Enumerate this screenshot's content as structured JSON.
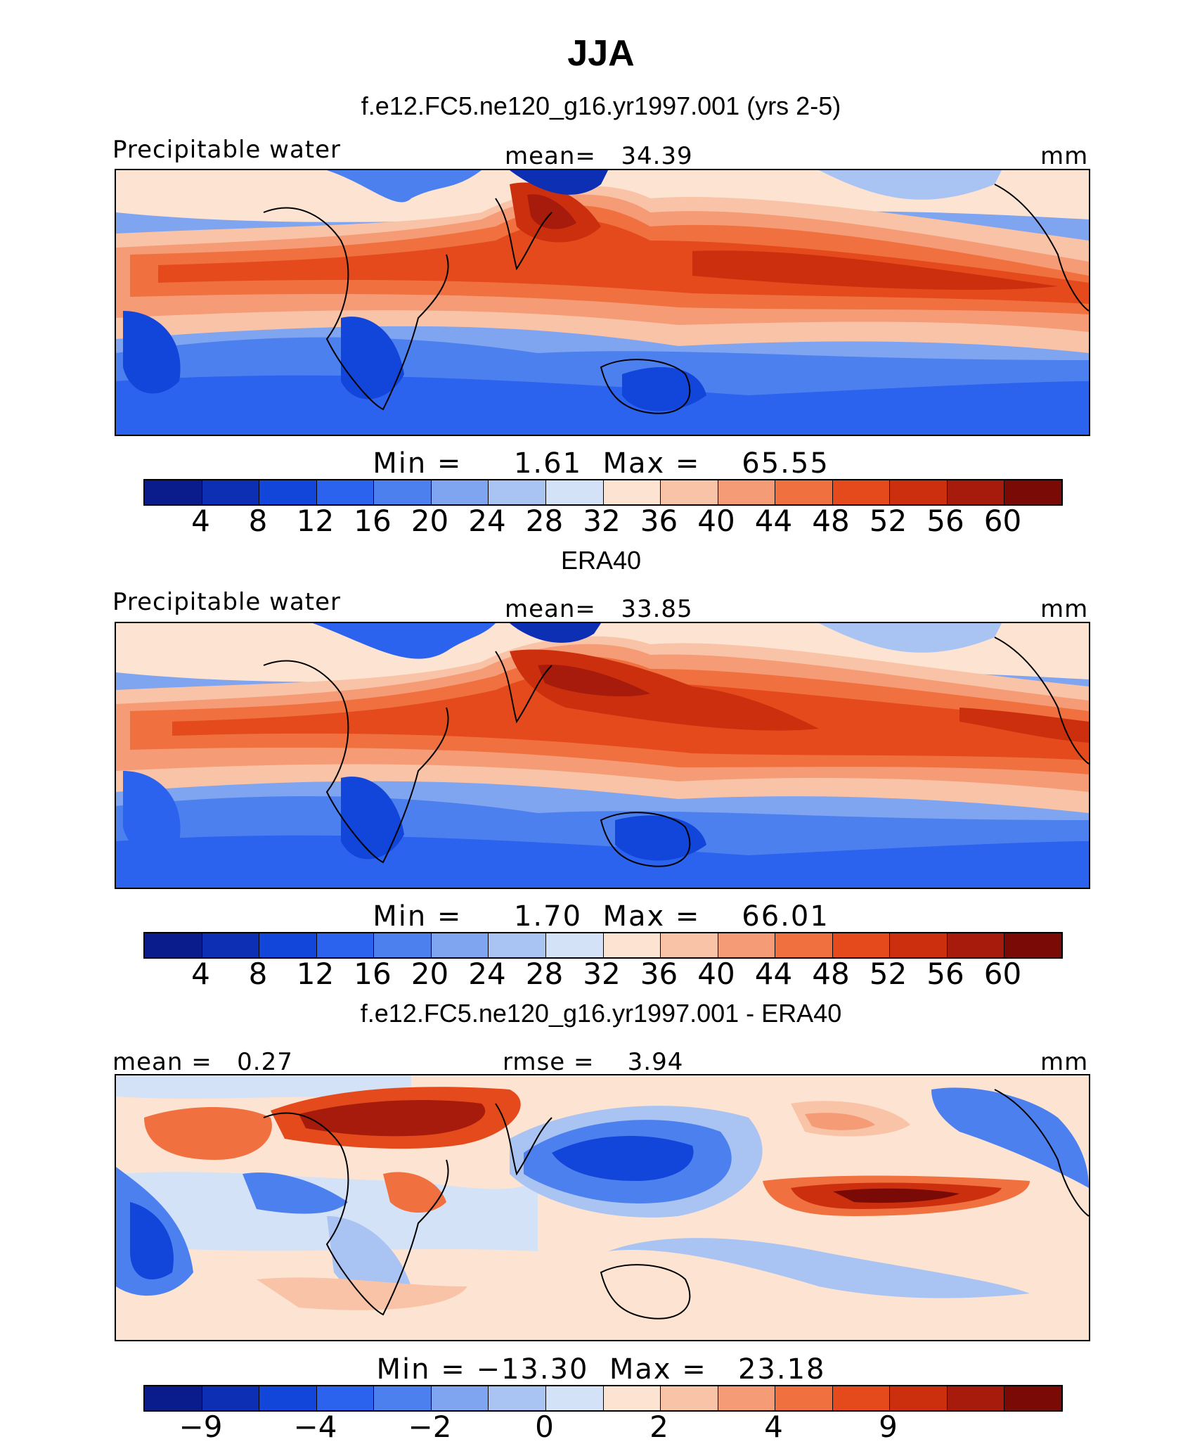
{
  "title": "JJA",
  "panels": [
    {
      "heading": "f.e12.FC5.ne120_g16.yr1997.001 (yrs 2-5)",
      "left_label": "Precipitable water",
      "center_label": "mean=   34.39",
      "right_label": "mm",
      "stats": "Min =     1.61  Max =    65.55",
      "colorbar": {
        "colors": [
          "#0a1c8c",
          "#0c2fb4",
          "#1245d9",
          "#2b62ee",
          "#4d80ef",
          "#7fa4f0",
          "#a9c3f2",
          "#d3e2f7",
          "#fde4d2",
          "#f9c3a7",
          "#f59b76",
          "#f0703f",
          "#e44a1c",
          "#cc2f0e",
          "#a61b0b",
          "#7a0a06"
        ],
        "ticks": [
          "4",
          "8",
          "12",
          "16",
          "20",
          "24",
          "28",
          "32",
          "36",
          "40",
          "44",
          "48",
          "52",
          "56",
          "60"
        ]
      }
    },
    {
      "heading": "ERA40",
      "left_label": "Precipitable water",
      "center_label": "mean=   33.85",
      "right_label": "mm",
      "stats": "Min =     1.70  Max =    66.01",
      "colorbar": {
        "colors": [
          "#0a1c8c",
          "#0c2fb4",
          "#1245d9",
          "#2b62ee",
          "#4d80ef",
          "#7fa4f0",
          "#a9c3f2",
          "#d3e2f7",
          "#fde4d2",
          "#f9c3a7",
          "#f59b76",
          "#f0703f",
          "#e44a1c",
          "#cc2f0e",
          "#a61b0b",
          "#7a0a06"
        ],
        "ticks": [
          "4",
          "8",
          "12",
          "16",
          "20",
          "24",
          "28",
          "32",
          "36",
          "40",
          "44",
          "48",
          "52",
          "56",
          "60"
        ]
      }
    },
    {
      "heading": "f.e12.FC5.ne120_g16.yr1997.001 - ERA40",
      "left_label": "mean =   0.27",
      "center_label": "rmse =    3.94",
      "right_label": "mm",
      "stats": "Min = −13.30  Max =   23.18",
      "colorbar": {
        "colors": [
          "#0a1c8c",
          "#0c2fb4",
          "#1245d9",
          "#2b62ee",
          "#4d80ef",
          "#7fa4f0",
          "#a9c3f2",
          "#d3e2f7",
          "#fde4d2",
          "#f9c3a7",
          "#f59b76",
          "#f0703f",
          "#e44a1c",
          "#cc2f0e",
          "#a61b0b",
          "#7a0a06"
        ],
        "ticks": [
          "−9",
          "−4",
          "−2",
          "0",
          "2",
          "4",
          "9"
        ]
      }
    }
  ]
}
